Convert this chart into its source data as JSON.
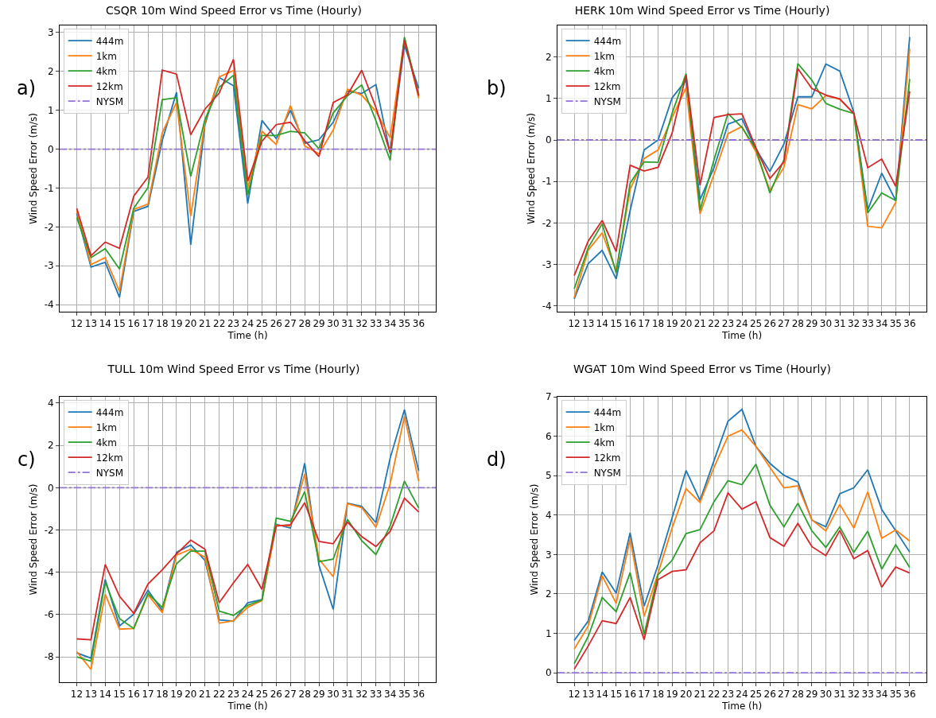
{
  "chart_data": [
    {
      "type": "line",
      "title": "CSQR 10m Wind Speed Error vs Time (Hourly)",
      "xlabel": "Time (h)",
      "ylabel": "Wind Speed Error (m/s)",
      "annotations": [
        "a)"
      ],
      "x": [
        12,
        13,
        14,
        15,
        16,
        17,
        18,
        19,
        20,
        21,
        22,
        23,
        24,
        25,
        26,
        27,
        28,
        29,
        30,
        31,
        32,
        33,
        34,
        35,
        36
      ],
      "xlim": [
        10.8,
        37.2
      ],
      "xticks": [
        12,
        13,
        14,
        15,
        16,
        17,
        18,
        19,
        20,
        21,
        22,
        23,
        24,
        25,
        26,
        27,
        28,
        29,
        30,
        31,
        32,
        33,
        34,
        35,
        36
      ],
      "ylim": [
        -4.18,
        3.18
      ],
      "yticks": [
        -4,
        -3,
        -2,
        -1,
        0,
        1,
        2,
        3
      ],
      "grid": true,
      "legend": "top left",
      "line_style": "solid",
      "ref_lines": [
        {
          "axis": "y",
          "value": 0,
          "label": "NYSM",
          "color": "#9370db",
          "line_style": "dashdot"
        }
      ],
      "series": [
        {
          "name": "444m",
          "color": "#1f77b4",
          "values": [
            -1.65,
            -3.03,
            -2.91,
            -3.81,
            -1.6,
            -1.47,
            0.22,
            1.46,
            -2.46,
            0.63,
            1.84,
            1.63,
            -1.4,
            0.74,
            0.27,
            1.0,
            0.15,
            0.24,
            0.69,
            1.49,
            1.43,
            1.66,
            -0.12,
            2.67,
            1.56
          ]
        },
        {
          "name": "1km",
          "color": "#ff7f0e",
          "values": [
            -1.58,
            -2.97,
            -2.79,
            -3.66,
            -1.55,
            -1.41,
            0.42,
            1.2,
            -1.72,
            0.69,
            1.86,
            2.02,
            -1.0,
            0.46,
            0.12,
            1.12,
            0.08,
            -0.12,
            0.49,
            1.54,
            1.39,
            0.97,
            0.29,
            2.84,
            1.31
          ]
        },
        {
          "name": "4km",
          "color": "#2ca02c",
          "values": [
            -1.76,
            -2.79,
            -2.56,
            -3.08,
            -1.52,
            -0.99,
            1.27,
            1.32,
            -0.7,
            0.76,
            1.59,
            1.9,
            -1.18,
            0.35,
            0.35,
            0.46,
            0.42,
            0.01,
            0.93,
            1.37,
            1.65,
            0.73,
            -0.29,
            2.88,
            1.39
          ]
        },
        {
          "name": "12km",
          "color": "#d62728",
          "values": [
            -1.52,
            -2.74,
            -2.39,
            -2.55,
            -1.21,
            -0.72,
            2.03,
            1.93,
            0.37,
            1.03,
            1.44,
            2.31,
            -0.82,
            0.2,
            0.63,
            0.69,
            0.22,
            -0.19,
            1.2,
            1.39,
            2.03,
            1.07,
            -0.09,
            2.8,
            1.37
          ]
        }
      ]
    },
    {
      "type": "line",
      "title": "HERK 10m Wind Speed Error vs Time (Hourly)",
      "xlabel": "Time (h)",
      "ylabel": "Wind Speed Error (m/s)",
      "annotations": [
        "b)"
      ],
      "x": [
        12,
        13,
        14,
        15,
        16,
        17,
        18,
        19,
        20,
        21,
        22,
        23,
        24,
        25,
        26,
        27,
        28,
        29,
        30,
        31,
        32,
        33,
        34,
        35,
        36
      ],
      "xlim": [
        10.8,
        37.2
      ],
      "xticks": [
        12,
        13,
        14,
        15,
        16,
        17,
        18,
        19,
        20,
        21,
        22,
        23,
        24,
        25,
        26,
        27,
        28,
        29,
        30,
        31,
        32,
        33,
        34,
        35,
        36
      ],
      "ylim": [
        -4.14,
        2.76
      ],
      "yticks": [
        -4,
        -3,
        -2,
        -1,
        0,
        1,
        2
      ],
      "grid": true,
      "legend": "top left",
      "line_style": "solid",
      "ref_lines": [
        {
          "axis": "y",
          "value": 0,
          "label": "NYSM",
          "color": "#9370db",
          "line_style": "dashdot"
        }
      ],
      "series": [
        {
          "name": "444m",
          "color": "#1f77b4",
          "values": [
            -3.83,
            -2.98,
            -2.66,
            -3.35,
            -1.7,
            -0.24,
            0.0,
            1.01,
            1.44,
            -1.44,
            -0.67,
            0.38,
            0.51,
            -0.22,
            -0.76,
            -0.1,
            1.04,
            1.04,
            1.83,
            1.66,
            0.67,
            -1.69,
            -0.8,
            -1.46,
            2.48
          ]
        },
        {
          "name": "1km",
          "color": "#ff7f0e",
          "values": [
            -3.8,
            -2.66,
            -2.24,
            -3.16,
            -1.19,
            -0.45,
            -0.24,
            0.54,
            1.26,
            -1.78,
            -0.83,
            0.15,
            0.32,
            -0.29,
            -1.22,
            -0.66,
            0.85,
            0.75,
            1.07,
            0.98,
            0.64,
            -2.08,
            -2.12,
            -1.51,
            2.2
          ]
        },
        {
          "name": "4km",
          "color": "#2ca02c",
          "values": [
            -3.59,
            -2.6,
            -2.02,
            -3.21,
            -1.04,
            -0.53,
            -0.54,
            0.64,
            1.6,
            -1.69,
            -0.48,
            0.64,
            0.3,
            -0.22,
            -1.28,
            -0.48,
            1.84,
            1.44,
            0.88,
            0.74,
            0.64,
            -1.76,
            -1.28,
            -1.46,
            1.47
          ]
        },
        {
          "name": "12km",
          "color": "#d62728",
          "values": [
            -3.27,
            -2.44,
            -1.94,
            -2.69,
            -0.61,
            -0.75,
            -0.66,
            0.16,
            1.56,
            -1.09,
            0.54,
            0.61,
            0.63,
            -0.19,
            -0.93,
            -0.53,
            1.72,
            1.24,
            1.08,
            0.99,
            0.64,
            -0.67,
            -0.46,
            -1.12,
            1.17
          ]
        }
      ]
    },
    {
      "type": "line",
      "title": "TULL 10m Wind Speed Error vs Time (Hourly)",
      "xlabel": "Time (h)",
      "ylabel": "Wind Speed Error (m/s)",
      "annotations": [
        "c)"
      ],
      "x": [
        12,
        13,
        14,
        15,
        16,
        17,
        18,
        19,
        20,
        21,
        22,
        23,
        24,
        25,
        26,
        27,
        28,
        29,
        30,
        31,
        32,
        33,
        34,
        35,
        36
      ],
      "xlim": [
        10.8,
        37.2
      ],
      "xticks": [
        12,
        13,
        14,
        15,
        16,
        17,
        18,
        19,
        20,
        21,
        22,
        23,
        24,
        25,
        26,
        27,
        28,
        29,
        30,
        31,
        32,
        33,
        34,
        35,
        36
      ],
      "ylim": [
        -9.2,
        4.3
      ],
      "yticks": [
        -8,
        -6,
        -4,
        -2,
        0,
        2,
        4
      ],
      "grid": true,
      "legend": "top left",
      "line_style": "solid",
      "ref_lines": [
        {
          "axis": "y",
          "value": 0,
          "label": "NYSM",
          "color": "#9370db",
          "line_style": "dashdot"
        }
      ],
      "series": [
        {
          "name": "444m",
          "color": "#1f77b4",
          "values": [
            -7.81,
            -8.06,
            -4.34,
            -6.54,
            -5.98,
            -4.85,
            -5.81,
            -3.06,
            -2.71,
            -3.44,
            -6.25,
            -6.31,
            -5.44,
            -5.29,
            -1.73,
            -1.91,
            1.16,
            -3.66,
            -5.75,
            -0.73,
            -0.88,
            -1.65,
            1.41,
            3.69,
            0.79
          ]
        },
        {
          "name": "1km",
          "color": "#ff7f0e",
          "values": [
            -7.75,
            -8.6,
            -5.04,
            -6.69,
            -6.66,
            -5.06,
            -5.91,
            -3.19,
            -2.91,
            -3.29,
            -6.41,
            -6.29,
            -5.66,
            -5.34,
            -1.78,
            -1.81,
            0.65,
            -3.38,
            -4.21,
            -0.75,
            -0.94,
            -1.88,
            0.19,
            3.38,
            0.31
          ]
        },
        {
          "name": "4km",
          "color": "#2ca02c",
          "values": [
            -8.0,
            -8.21,
            -4.46,
            -6.19,
            -6.66,
            -5.0,
            -5.66,
            -3.6,
            -3.0,
            -3.0,
            -5.84,
            -6.04,
            -5.56,
            -5.31,
            -1.44,
            -1.59,
            -0.19,
            -3.5,
            -3.38,
            -1.5,
            -2.5,
            -3.16,
            -1.81,
            0.31,
            -0.96
          ]
        },
        {
          "name": "12km",
          "color": "#d62728",
          "values": [
            -7.15,
            -7.19,
            -3.63,
            -5.13,
            -5.94,
            -4.56,
            -3.88,
            -3.13,
            -2.48,
            -2.91,
            -5.44,
            -4.5,
            -3.63,
            -4.81,
            -1.81,
            -1.75,
            -0.71,
            -2.54,
            -2.65,
            -1.63,
            -2.31,
            -2.78,
            -2.06,
            -0.5,
            -1.15
          ]
        }
      ]
    },
    {
      "type": "line",
      "title": "WGAT 10m Wind Speed Error vs Time (Hourly)",
      "xlabel": "Time (h)",
      "ylabel": "Wind Speed Error (m/s)",
      "annotations": [
        "d)"
      ],
      "x": [
        12,
        13,
        14,
        15,
        16,
        17,
        18,
        19,
        20,
        21,
        22,
        23,
        24,
        25,
        26,
        27,
        28,
        29,
        30,
        31,
        32,
        33,
        34,
        35,
        36
      ],
      "xlim": [
        10.8,
        37.2
      ],
      "xticks": [
        12,
        13,
        14,
        15,
        16,
        17,
        18,
        19,
        20,
        21,
        22,
        23,
        24,
        25,
        26,
        27,
        28,
        29,
        30,
        31,
        32,
        33,
        34,
        35,
        36
      ],
      "ylim": [
        -0.24,
        7.0
      ],
      "yticks": [
        0,
        1,
        2,
        3,
        4,
        5,
        6,
        7
      ],
      "grid": true,
      "legend": "top left",
      "line_style": "solid",
      "ref_lines": [
        {
          "axis": "y",
          "value": 0,
          "label": "NYSM",
          "color": "#9370db",
          "line_style": "dashdot"
        }
      ],
      "series": [
        {
          "name": "444m",
          "color": "#1f77b4",
          "values": [
            0.82,
            1.31,
            2.56,
            2.02,
            3.55,
            1.69,
            2.74,
            3.93,
            5.13,
            4.37,
            5.38,
            6.38,
            6.68,
            5.74,
            5.31,
            5.01,
            4.84,
            3.87,
            3.7,
            4.54,
            4.69,
            5.15,
            4.14,
            3.6,
            3.06
          ]
        },
        {
          "name": "1km",
          "color": "#ff7f0e",
          "values": [
            0.6,
            1.19,
            2.46,
            1.76,
            3.4,
            1.43,
            2.53,
            3.67,
            4.67,
            4.32,
            5.21,
            6.0,
            6.16,
            5.74,
            5.21,
            4.69,
            4.74,
            3.88,
            3.6,
            4.27,
            3.67,
            4.59,
            3.41,
            3.62,
            3.34
          ]
        },
        {
          "name": "4km",
          "color": "#2ca02c",
          "values": [
            0.23,
            0.92,
            1.91,
            1.55,
            2.54,
            0.97,
            2.49,
            2.85,
            3.53,
            3.63,
            4.34,
            4.87,
            4.77,
            5.29,
            4.25,
            3.7,
            4.3,
            3.6,
            3.18,
            3.7,
            3.05,
            3.59,
            2.63,
            3.25,
            2.67
          ]
        },
        {
          "name": "12km",
          "color": "#d62728",
          "values": [
            0.09,
            0.68,
            1.32,
            1.25,
            1.91,
            0.84,
            2.36,
            2.57,
            2.61,
            3.3,
            3.6,
            4.56,
            4.15,
            4.34,
            3.43,
            3.21,
            3.79,
            3.2,
            2.97,
            3.61,
            2.89,
            3.1,
            2.17,
            2.68,
            2.53
          ]
        }
      ]
    }
  ]
}
